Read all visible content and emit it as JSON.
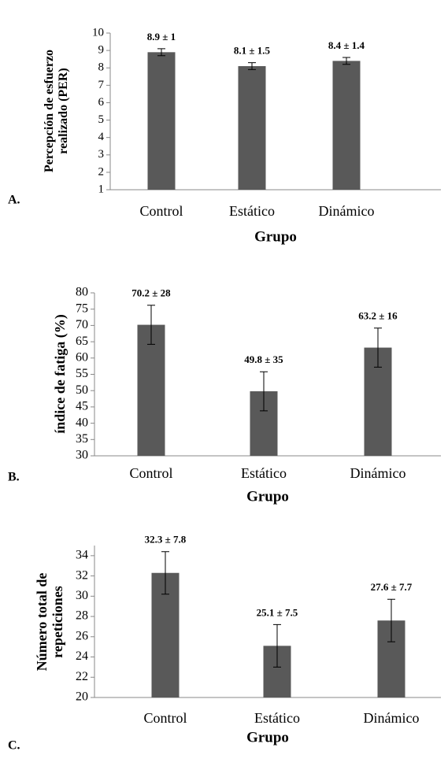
{
  "chart_data": [
    {
      "type": "bar",
      "panel_label": "A.",
      "ylabel": [
        "Percepción de esfuerzo",
        "realizado  (PER)"
      ],
      "xlabel": "Grupo",
      "categories": [
        "Control",
        "Estático",
        "Dinámico"
      ],
      "values": [
        8.9,
        8.1,
        8.4
      ],
      "errors": [
        0.2,
        0.2,
        0.2
      ],
      "value_labels": [
        "8.9 ± 1",
        "8.1 ± 1.5",
        "8.4 ± 1.4"
      ],
      "color": "#595959",
      "ylim": [
        1,
        10
      ],
      "yticks": [
        1,
        2,
        3,
        4,
        5,
        6,
        7,
        8,
        9,
        10
      ]
    },
    {
      "type": "bar",
      "panel_label": "B.",
      "ylabel": [
        "índice de fatiga (%)"
      ],
      "xlabel": "Grupo",
      "categories": [
        "Control",
        "Estático",
        "Dinámico"
      ],
      "values": [
        70.2,
        49.8,
        63.2
      ],
      "errors": [
        6,
        6,
        6
      ],
      "value_labels": [
        "70.2 ± 28",
        "49.8 ± 35",
        "63.2 ± 16"
      ],
      "color": "#595959",
      "ylim": [
        30,
        80
      ],
      "yticks": [
        30,
        35,
        40,
        45,
        50,
        55,
        60,
        65,
        70,
        75,
        80
      ]
    },
    {
      "type": "bar",
      "panel_label": "C.",
      "ylabel": [
        "Número total de",
        "repeticiones"
      ],
      "xlabel": "Grupo",
      "categories": [
        "Control",
        "Estático",
        "Dinámico"
      ],
      "values": [
        32.3,
        25.1,
        27.6
      ],
      "errors": [
        2.1,
        2.1,
        2.1
      ],
      "value_labels": [
        "32.3 ± 7.8",
        "25.1 ± 7.5",
        "27.6 ± 7.7"
      ],
      "color": "#595959",
      "ylim": [
        20,
        35
      ],
      "yticks": [
        20,
        22,
        24,
        26,
        28,
        30,
        32,
        34
      ]
    }
  ]
}
